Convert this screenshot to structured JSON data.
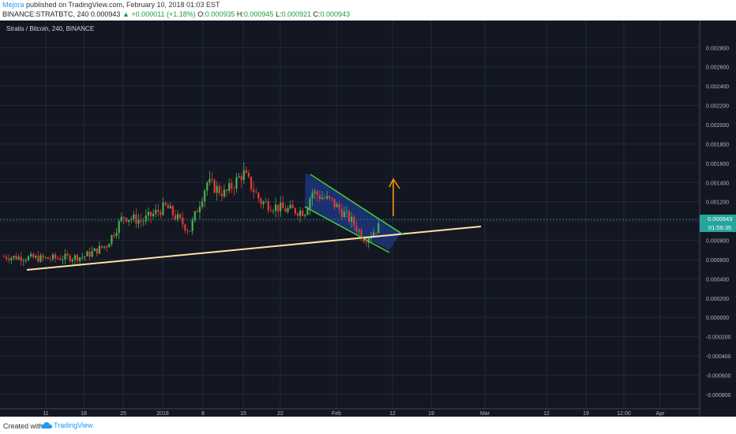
{
  "header": {
    "author": "Mejora",
    "published": "published on TradingView.com, February 10, 2018 01:03 EST",
    "symbol": "BINANCE:STRATBTC, 240",
    "last": "0.000943",
    "change": "+0.000011 (+1.18%)",
    "open_label": "O:",
    "open": "0.000935",
    "high_label": "H:",
    "high": "0.000945",
    "low_label": "L:",
    "low": "0.000921",
    "close_label": "C:",
    "close": "0.000943"
  },
  "footer": {
    "created_with": "Created with",
    "brand": "TradingView"
  },
  "colors": {
    "bg": "#131722",
    "grid": "#232838",
    "up": "#4caf50",
    "down": "#e53935",
    "trendline": "#ffe0a3",
    "channel": "#4cd137",
    "channel_fill": "#1e3a8a",
    "arrow": "#ff9800",
    "price_line": "#26a69a"
  },
  "chart_data": {
    "type": "candlestick",
    "title": "Stratis / Bitcoin, 240, BINANCE",
    "ylim": [
      -0.00085,
      0.00295
    ],
    "y_ticks": [
      "0.002800",
      "0.002600",
      "0.002400",
      "0.002200",
      "0.002000",
      "0.001800",
      "0.001600",
      "0.001400",
      "0.001200",
      "0.001000",
      "0.000800",
      "0.000600",
      "0.000400",
      "0.000200",
      "0.000000",
      "-0.000200",
      "-0.000400",
      "-0.000600",
      "-0.000800"
    ],
    "x_ticks": [
      "11",
      "18",
      "25",
      "2018",
      "8",
      "15",
      "22",
      "Feb",
      "12",
      "19",
      "Mar",
      "12",
      "19",
      "12:00",
      "Apr"
    ],
    "price_labels": {
      "last": "0.000943",
      "countdown": "01:56:35"
    },
    "series": [
      {
        "x": [
          "Jan 5",
          "Jan 11",
          "Jan 18",
          "Jan 25",
          "2018",
          "Jan 8",
          "Jan 15",
          "Jan 22",
          "Jan 29",
          "Feb",
          "Feb 9"
        ],
        "close": [
          0.00063,
          0.00061,
          0.00064,
          0.00105,
          0.0011,
          0.0014,
          0.0015,
          0.00115,
          0.00125,
          0.00098,
          0.00094
        ]
      }
    ]
  }
}
